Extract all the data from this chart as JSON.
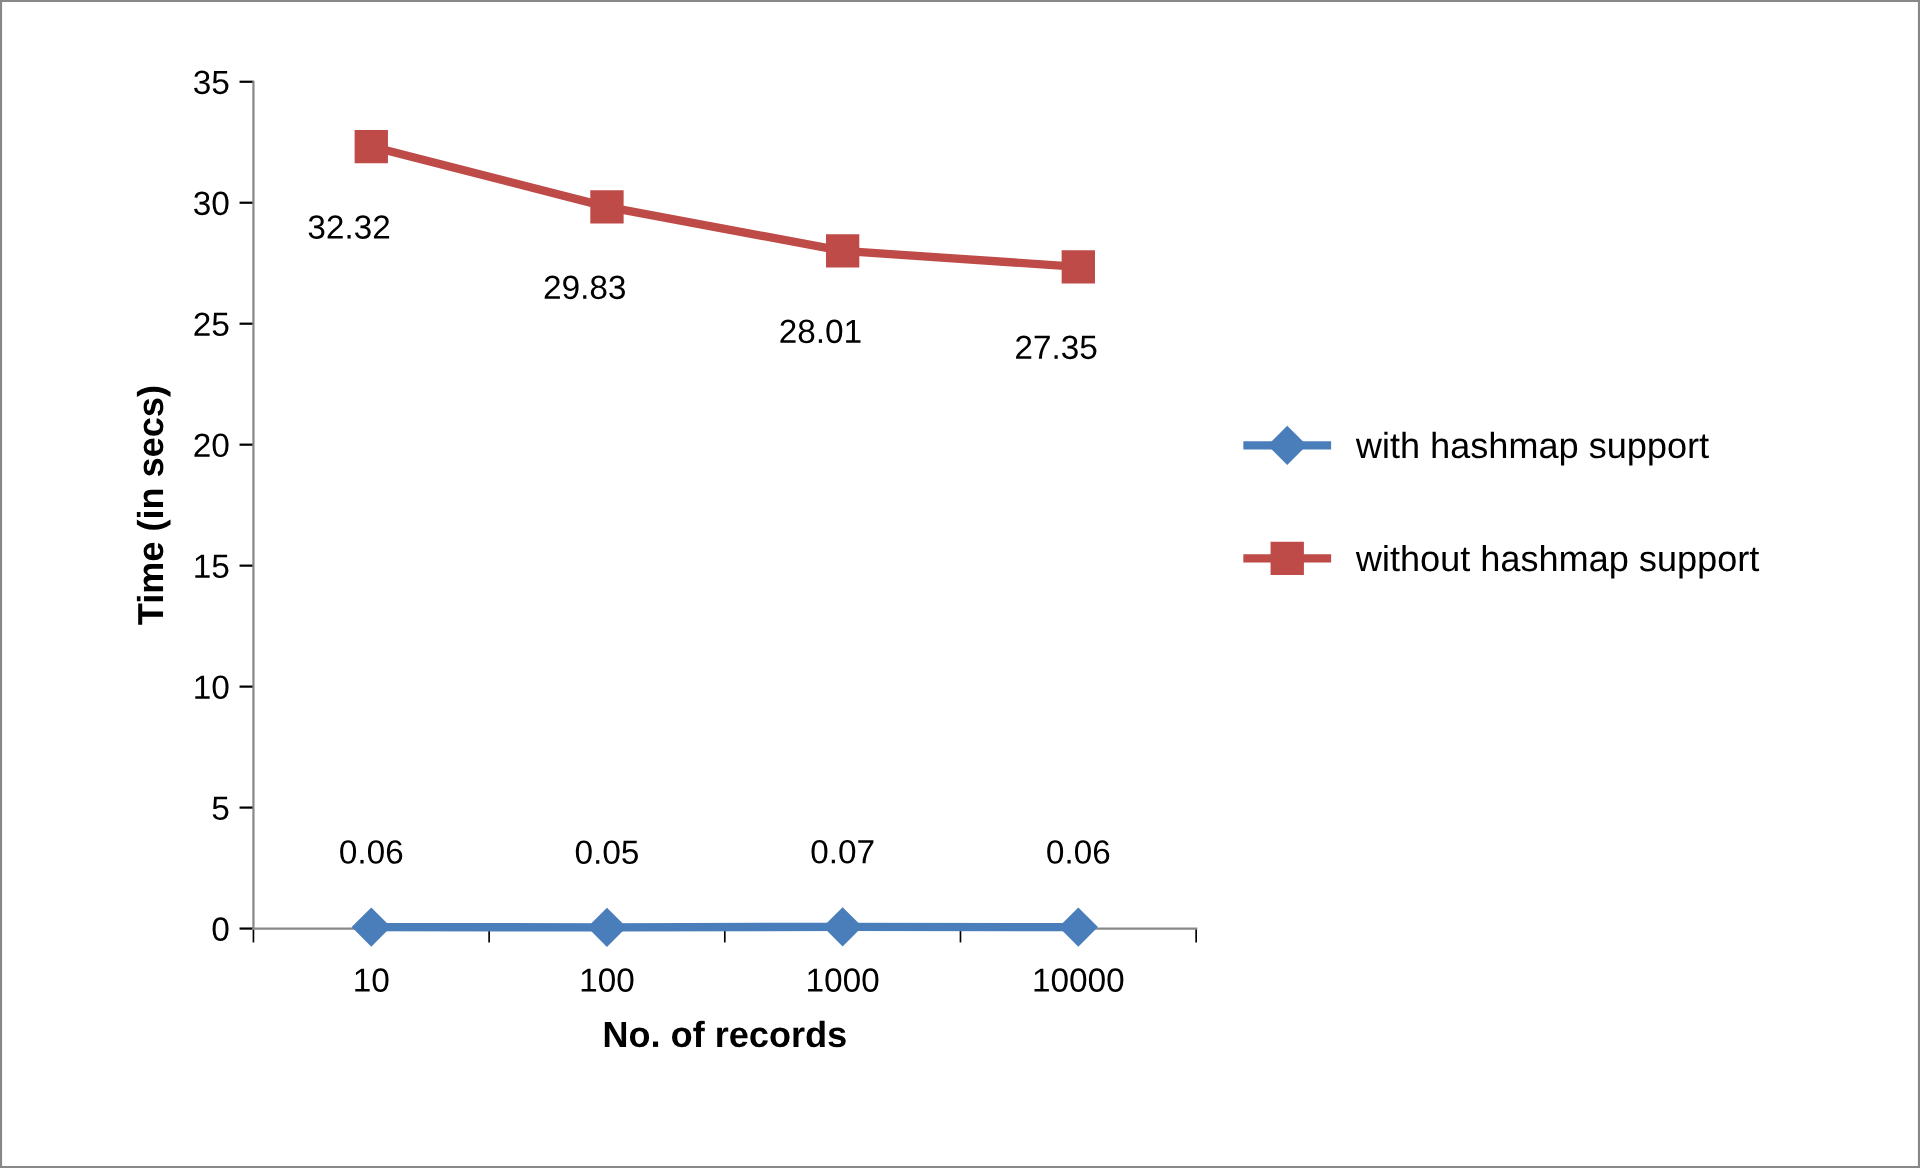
{
  "chart_data": {
    "type": "line",
    "xlabel": "No. of records",
    "ylabel": "Time (in secs)",
    "categories": [
      "10",
      "100",
      "1000",
      "10000"
    ],
    "series": [
      {
        "name": "with hashmap support",
        "color": "#4a7ebb",
        "marker": "diamond",
        "values": [
          0.06,
          0.05,
          0.07,
          0.06
        ]
      },
      {
        "name": "without hashmap support",
        "color": "#be4b48",
        "marker": "square",
        "values": [
          32.32,
          29.83,
          28.01,
          27.35
        ]
      }
    ],
    "ylim": [
      0,
      35
    ],
    "yticks": [
      0,
      5,
      10,
      15,
      20,
      25,
      30,
      35
    ],
    "grid": false,
    "legend": "right",
    "data_labels": true,
    "line_style": "solid"
  }
}
